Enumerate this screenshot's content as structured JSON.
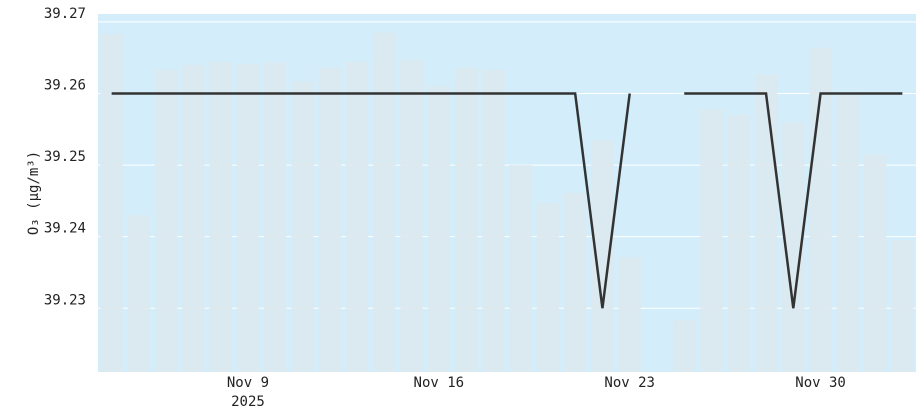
{
  "chart_data": {
    "type": "bar_line",
    "y_label": "O₃ (μg/m³)",
    "x": [
      "2025-11-04",
      "2025-11-05",
      "2025-11-06",
      "2025-11-07",
      "2025-11-08",
      "2025-11-09",
      "2025-11-10",
      "2025-11-11",
      "2025-11-12",
      "2025-11-13",
      "2025-11-14",
      "2025-11-15",
      "2025-11-16",
      "2025-11-17",
      "2025-11-18",
      "2025-11-19",
      "2025-11-20",
      "2025-11-21",
      "2025-11-22",
      "2025-11-23",
      "2025-11-24",
      "2025-11-25",
      "2025-11-26",
      "2025-11-27",
      "2025-11-28",
      "2025-11-29",
      "2025-11-30",
      "2025-12-01",
      "2025-12-02",
      "2025-12-03"
    ],
    "series": [
      {
        "type": "bar",
        "color": "#dce8ee",
        "values": [
          39.2683,
          39.243,
          39.2633,
          39.264,
          39.2644,
          39.2641,
          39.2643,
          39.2617,
          39.2636,
          39.2644,
          39.2685,
          39.2647,
          39.261,
          39.2636,
          39.2633,
          39.25,
          39.2447,
          39.2461,
          39.2535,
          39.2371,
          null,
          39.2283,
          39.2578,
          39.257,
          39.2626,
          39.256,
          39.2664,
          39.2598,
          39.2515,
          39.2395
        ]
      },
      {
        "type": "line",
        "color": "#333333",
        "values": [
          39.26,
          39.26,
          39.26,
          39.26,
          39.26,
          39.26,
          39.26,
          39.26,
          39.26,
          39.26,
          39.26,
          39.26,
          39.26,
          39.26,
          39.26,
          39.26,
          39.26,
          39.26,
          39.23,
          39.26,
          null,
          39.26,
          39.26,
          39.26,
          39.26,
          39.23,
          39.26,
          39.26,
          39.26,
          39.26
        ]
      }
    ],
    "xlim": [
      "2025-11-03T12:00:00Z",
      "2025-12-03T12:00:00Z"
    ],
    "xticks": [
      {
        "value": "2025-11-09",
        "label": "Nov 9"
      },
      {
        "value": "2025-11-16",
        "label": "Nov 16"
      },
      {
        "value": "2025-11-23",
        "label": "Nov 23"
      },
      {
        "value": "2025-11-30",
        "label": "Nov 30"
      }
    ],
    "x_year_label": "2025",
    "ylim": [
      39.2211,
      39.2711
    ],
    "yticks": [
      39.23,
      39.24,
      39.25,
      39.26,
      39.27
    ],
    "grid": true,
    "plot_background": "#d3eefa"
  }
}
